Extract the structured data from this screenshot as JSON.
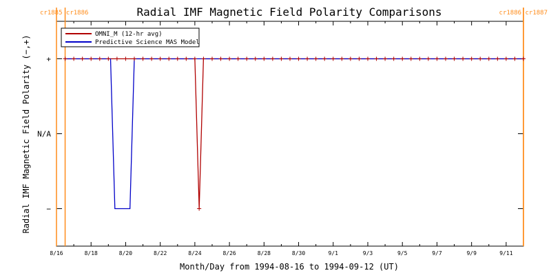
{
  "colors": {
    "omni": "#b00000",
    "mas": "#0000c8",
    "carrington": "#ff8c1a",
    "axis": "#000000"
  },
  "chart_data": {
    "type": "line",
    "title": "Radial IMF Magnetic Field Polarity Comparisons",
    "xlabel": "Month/Day from 1994-08-16 to 1994-09-12 (UT)",
    "ylabel": "Radial IMF Magnetic Field Polarity (−,+)",
    "xlim": [
      "1994-08-16T00:00",
      "1994-09-12T00:00"
    ],
    "ylim": [
      -1.5,
      1.5
    ],
    "grid": false,
    "legend_position": "top-left",
    "x_ticks": [
      "8/16",
      "8/18",
      "8/20",
      "8/22",
      "8/24",
      "8/26",
      "8/28",
      "8/30",
      "9/1",
      "9/3",
      "9/5",
      "9/7",
      "9/9",
      "9/11"
    ],
    "y_ticks": [
      {
        "value": 1,
        "label": "+"
      },
      {
        "value": 0,
        "label": "N/A"
      },
      {
        "value": -1,
        "label": "−"
      }
    ],
    "carrington_markers": [
      {
        "label": "cr1885",
        "at": "1994-08-16T00:00",
        "side": "left"
      },
      {
        "label": "cr1886",
        "at": "1994-08-16T12:00",
        "side": "left"
      },
      {
        "label": "cr1886",
        "at": "1994-09-12T00:00",
        "side": "right"
      },
      {
        "label": "cr1887",
        "at": "1994-09-12T00:00",
        "side": "right"
      }
    ],
    "series": [
      {
        "name": "OMNI_M (12-hr avg)",
        "markers": true,
        "points": [
          [
            "1994-08-16T12:00",
            1
          ],
          [
            "1994-08-24T00:00",
            1
          ],
          [
            "1994-08-24T06:00",
            -1
          ],
          [
            "1994-08-24T12:00",
            1
          ],
          [
            "1994-09-12T00:00",
            1
          ]
        ]
      },
      {
        "name": "Predictive Science MAS Model",
        "markers": false,
        "points": [
          [
            "1994-08-16T12:00",
            1
          ],
          [
            "1994-08-19T03:00",
            1
          ],
          [
            "1994-08-19T09:00",
            -1
          ],
          [
            "1994-08-20T06:00",
            -1
          ],
          [
            "1994-08-20T12:00",
            1
          ],
          [
            "1994-09-12T00:00",
            1
          ]
        ]
      }
    ]
  }
}
